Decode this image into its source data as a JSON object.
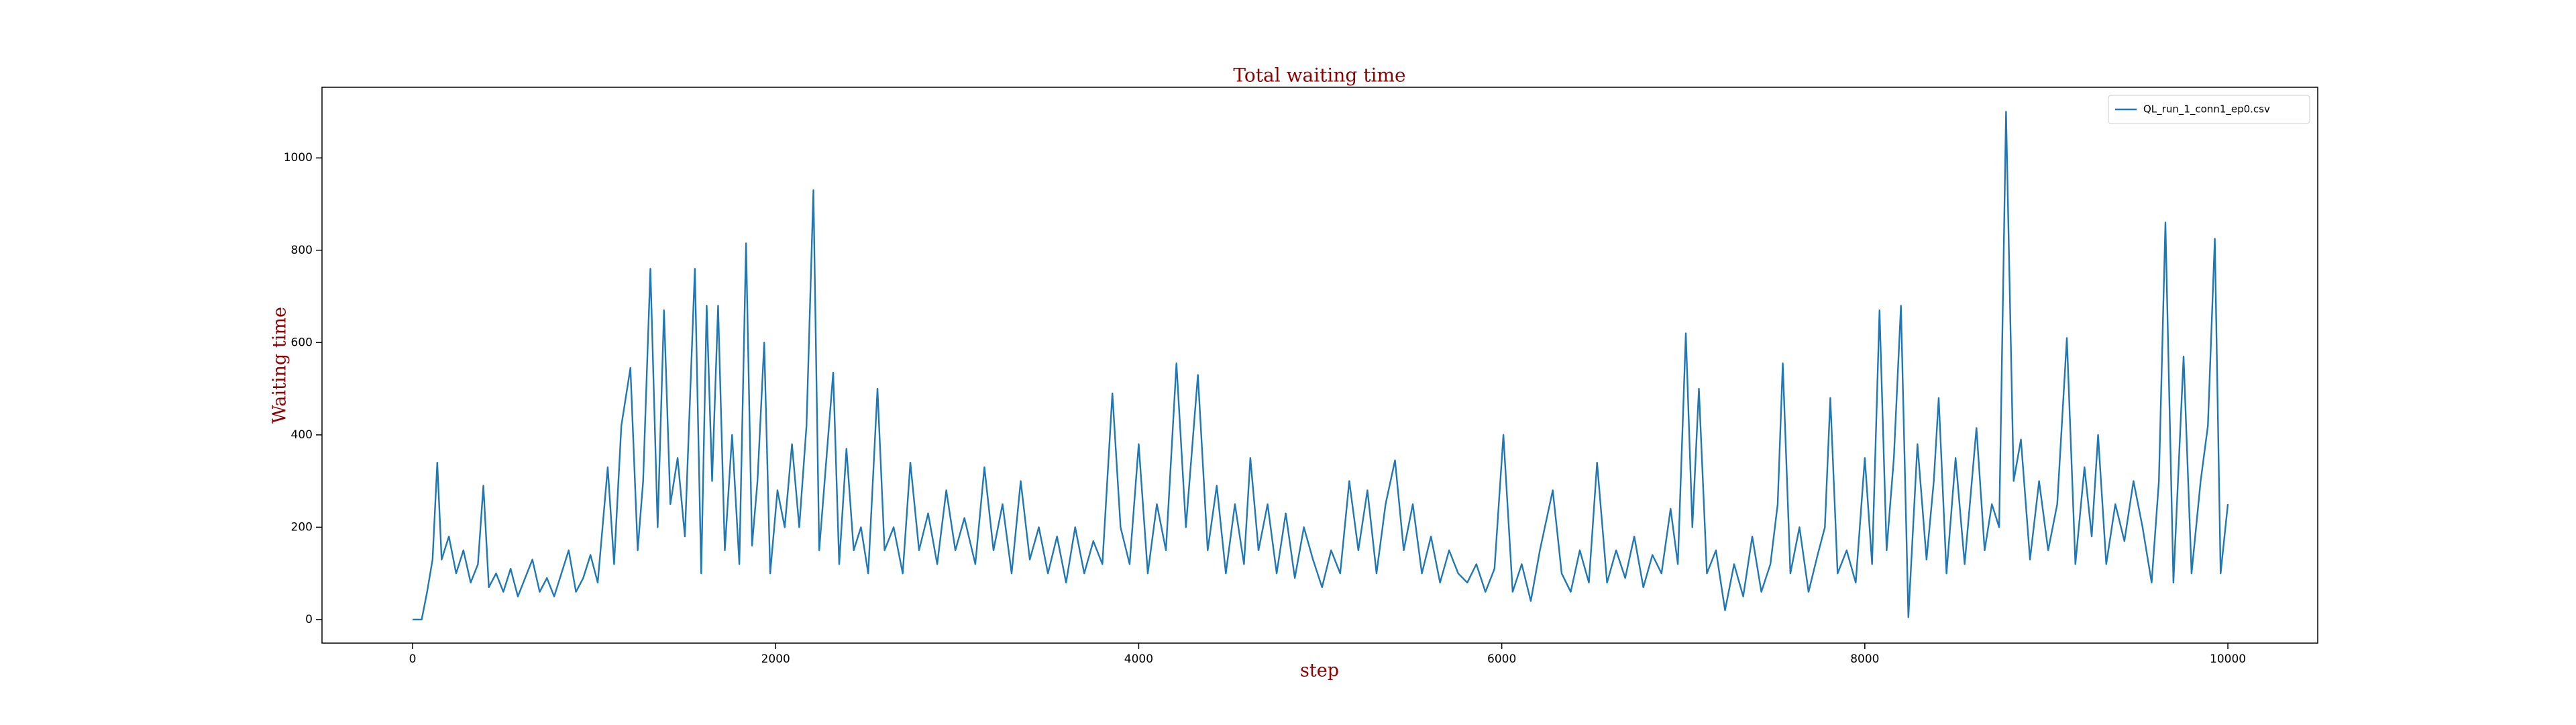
{
  "chart_data": {
    "type": "line",
    "title": "Total waiting time",
    "x_label": "step",
    "y_label": "Waiting time",
    "xlim": [
      -499,
      10495
    ],
    "ylim": [
      -51,
      1153
    ],
    "xticks": [
      0,
      2000,
      4000,
      6000,
      8000,
      10000
    ],
    "yticks": [
      0,
      200,
      400,
      600,
      800,
      1000
    ],
    "grid": false,
    "legend_position": "upper-right",
    "x": [
      0,
      50,
      80,
      110,
      136,
      160,
      200,
      240,
      280,
      320,
      360,
      390,
      420,
      460,
      500,
      540,
      580,
      620,
      660,
      700,
      740,
      780,
      820,
      860,
      900,
      940,
      980,
      1020,
      1075,
      1110,
      1150,
      1200,
      1240,
      1270,
      1310,
      1350,
      1385,
      1420,
      1460,
      1500,
      1555,
      1590,
      1620,
      1650,
      1683,
      1720,
      1760,
      1800,
      1837,
      1870,
      1900,
      1937,
      1970,
      2010,
      2050,
      2090,
      2130,
      2170,
      2208,
      2240,
      2280,
      2317,
      2350,
      2390,
      2430,
      2470,
      2510,
      2561,
      2600,
      2650,
      2700,
      2742,
      2790,
      2840,
      2890,
      2940,
      2990,
      3040,
      3100,
      3150,
      3200,
      3250,
      3300,
      3350,
      3400,
      3450,
      3500,
      3550,
      3600,
      3650,
      3700,
      3750,
      3800,
      3855,
      3900,
      3950,
      4000,
      4050,
      4100,
      4150,
      4208,
      4260,
      4326,
      4380,
      4430,
      4480,
      4530,
      4580,
      4615,
      4660,
      4710,
      4760,
      4810,
      4860,
      4910,
      4960,
      5010,
      5060,
      5110,
      5160,
      5210,
      5260,
      5310,
      5360,
      5412,
      5460,
      5510,
      5560,
      5610,
      5660,
      5710,
      5760,
      5810,
      5860,
      5910,
      5960,
      6009,
      6060,
      6110,
      6160,
      6210,
      6281,
      6330,
      6380,
      6430,
      6480,
      6525,
      6580,
      6630,
      6680,
      6730,
      6780,
      6830,
      6880,
      6930,
      6970,
      7014,
      7050,
      7086,
      7130,
      7180,
      7230,
      7280,
      7330,
      7380,
      7430,
      7480,
      7520,
      7548,
      7590,
      7640,
      7690,
      7740,
      7780,
      7810,
      7850,
      7900,
      7950,
      8000,
      8040,
      8081,
      8120,
      8160,
      8199,
      8240,
      8290,
      8340,
      8380,
      8407,
      8450,
      8500,
      8550,
      8615,
      8660,
      8700,
      8740,
      8778,
      8820,
      8860,
      8910,
      8960,
      9010,
      9060,
      9113,
      9160,
      9210,
      9250,
      9285,
      9330,
      9380,
      9430,
      9480,
      9530,
      9580,
      9620,
      9656,
      9700,
      9756,
      9800,
      9850,
      9890,
      9928,
      9960,
      10000
    ],
    "series": [
      {
        "name": "QL_run_1_conn1_ep0.csv",
        "color": "#1f77b4",
        "values": [
          0,
          0,
          60,
          130,
          340,
          130,
          180,
          100,
          150,
          80,
          120,
          290,
          70,
          100,
          60,
          110,
          50,
          90,
          130,
          60,
          90,
          50,
          100,
          150,
          60,
          90,
          140,
          80,
          330,
          120,
          420,
          545,
          150,
          300,
          760,
          200,
          670,
          250,
          350,
          180,
          760,
          100,
          680,
          300,
          680,
          150,
          400,
          120,
          815,
          160,
          300,
          600,
          100,
          280,
          200,
          380,
          200,
          420,
          930,
          150,
          350,
          535,
          120,
          370,
          150,
          200,
          100,
          500,
          150,
          200,
          100,
          340,
          150,
          230,
          120,
          280,
          150,
          220,
          120,
          330,
          150,
          250,
          100,
          300,
          130,
          200,
          100,
          180,
          80,
          200,
          100,
          170,
          120,
          490,
          200,
          120,
          380,
          100,
          250,
          150,
          555,
          200,
          530,
          150,
          290,
          100,
          250,
          120,
          350,
          150,
          250,
          100,
          230,
          90,
          200,
          130,
          70,
          150,
          100,
          300,
          150,
          280,
          100,
          250,
          345,
          150,
          250,
          100,
          180,
          80,
          150,
          100,
          80,
          120,
          60,
          110,
          400,
          60,
          120,
          40,
          150,
          280,
          100,
          60,
          150,
          80,
          340,
          80,
          150,
          90,
          180,
          70,
          140,
          100,
          240,
          120,
          620,
          200,
          500,
          100,
          150,
          20,
          120,
          50,
          180,
          60,
          120,
          250,
          555,
          100,
          200,
          60,
          140,
          200,
          480,
          100,
          150,
          80,
          350,
          120,
          670,
          150,
          350,
          680,
          5,
          380,
          130,
          300,
          480,
          100,
          350,
          120,
          415,
          150,
          250,
          200,
          1100,
          300,
          390,
          130,
          300,
          150,
          250,
          610,
          120,
          330,
          180,
          400,
          120,
          250,
          170,
          300,
          200,
          80,
          300,
          860,
          80,
          570,
          100,
          300,
          420,
          825,
          100,
          250
        ]
      }
    ]
  }
}
